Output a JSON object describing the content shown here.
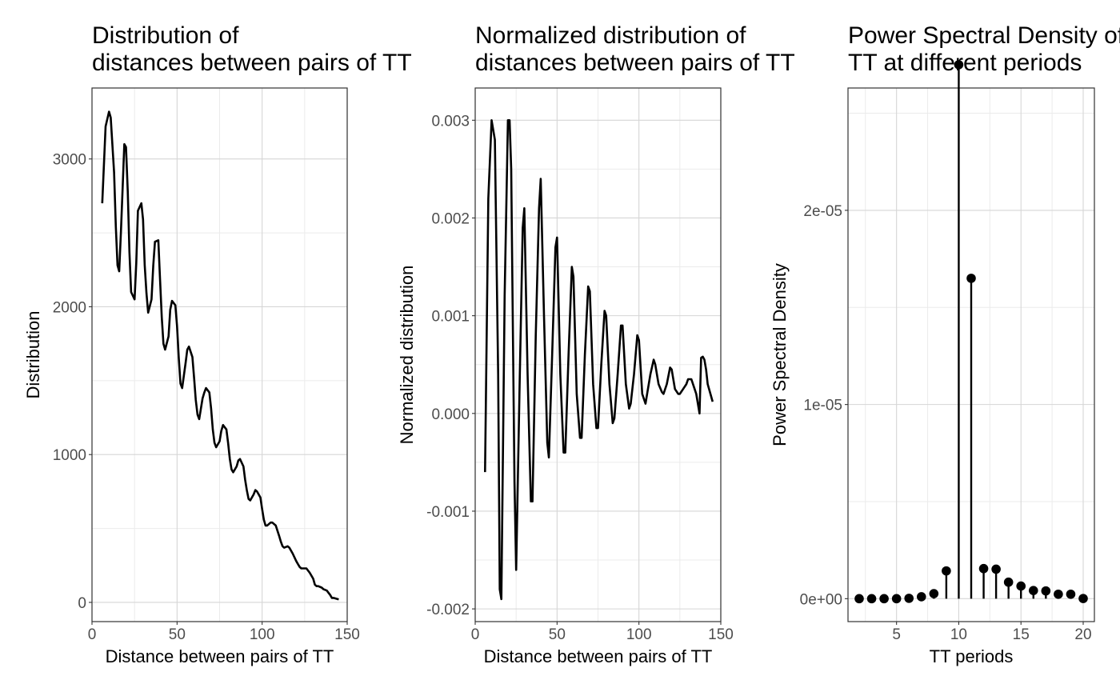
{
  "chart_data": [
    {
      "type": "line",
      "title_lines": [
        "Distribution of",
        "distances between pairs of TT"
      ],
      "xlabel": "Distance between pairs of TT",
      "ylabel": "Distribution",
      "xlim": [
        0,
        150
      ],
      "ylim": [
        -130,
        3480
      ],
      "x_ticks": [
        0,
        50,
        100,
        150
      ],
      "x_tick_labels": [
        "0",
        "50",
        "100",
        "150"
      ],
      "y_ticks": [
        0,
        1000,
        2000,
        3000
      ],
      "y_tick_labels": [
        "0",
        "1000",
        "2000",
        "3000"
      ],
      "grid": true,
      "x": [
        6,
        8,
        10,
        11,
        13,
        14,
        15,
        16,
        17,
        19,
        20,
        21,
        22,
        23,
        25,
        26,
        27,
        29,
        30,
        31,
        32,
        33,
        35,
        36,
        37,
        39,
        40,
        41,
        42,
        43,
        45,
        46,
        47,
        49,
        50,
        51,
        52,
        53,
        55,
        56,
        57,
        59,
        60,
        61,
        62,
        63,
        65,
        66,
        67,
        69,
        70,
        71,
        72,
        73,
        75,
        76,
        77,
        79,
        80,
        81,
        82,
        83,
        85,
        86,
        87,
        89,
        90,
        91,
        92,
        93,
        95,
        96,
        97,
        99,
        100,
        101,
        102,
        103,
        105,
        106,
        108,
        110,
        111,
        112,
        113,
        115,
        116,
        118,
        120,
        121,
        122,
        123,
        125,
        126,
        128,
        130,
        131,
        132,
        133,
        135,
        136,
        138,
        140,
        141,
        142,
        145
      ],
      "values": [
        2700,
        3220,
        3320,
        3280,
        2910,
        2540,
        2280,
        2240,
        2510,
        3100,
        3080,
        2780,
        2370,
        2100,
        2050,
        2290,
        2650,
        2700,
        2590,
        2280,
        2090,
        1960,
        2050,
        2280,
        2440,
        2450,
        2180,
        1930,
        1750,
        1710,
        1800,
        1980,
        2040,
        2010,
        1870,
        1650,
        1480,
        1450,
        1620,
        1710,
        1730,
        1660,
        1520,
        1370,
        1270,
        1240,
        1380,
        1420,
        1450,
        1420,
        1310,
        1170,
        1080,
        1050,
        1090,
        1160,
        1200,
        1170,
        1080,
        970,
        900,
        880,
        920,
        960,
        970,
        920,
        830,
        760,
        700,
        690,
        730,
        760,
        750,
        710,
        630,
        560,
        520,
        520,
        540,
        540,
        520,
        450,
        410,
        380,
        370,
        380,
        370,
        330,
        280,
        260,
        240,
        230,
        230,
        230,
        200,
        160,
        120,
        110,
        110,
        100,
        90,
        80,
        50,
        30,
        30,
        20
      ]
    },
    {
      "type": "line",
      "title_lines": [
        "Normalized distribution of",
        "distances between pairs of TT"
      ],
      "xlabel": "Distance between pairs of TT",
      "ylabel": "Normalized distribution",
      "xlim": [
        0,
        150
      ],
      "ylim": [
        -0.00213,
        0.00333
      ],
      "x_ticks": [
        0,
        50,
        100,
        150
      ],
      "x_tick_labels": [
        "0",
        "50",
        "100",
        "150"
      ],
      "y_ticks": [
        -0.002,
        -0.001,
        0.0,
        0.001,
        0.002,
        0.003
      ],
      "y_tick_labels": [
        "-0.002",
        "-0.001",
        "0.000",
        "0.001",
        "0.002",
        "0.003"
      ],
      "grid": true,
      "x": [
        6,
        8,
        10,
        12,
        14,
        15,
        16,
        18,
        20,
        21,
        22,
        24,
        25,
        27,
        29,
        30,
        32,
        34,
        35,
        37,
        39,
        40,
        42,
        44,
        45,
        47,
        49,
        50,
        52,
        54,
        55,
        57,
        59,
        60,
        62,
        64,
        65,
        67,
        69,
        70,
        72,
        74,
        75,
        77,
        79,
        80,
        82,
        84,
        85,
        87,
        89,
        90,
        92,
        94,
        95,
        97,
        99,
        100,
        102,
        104,
        105,
        107,
        109,
        110,
        112,
        114,
        115,
        117,
        119,
        120,
        122,
        124,
        125,
        127,
        129,
        130,
        132,
        134,
        135,
        137,
        138,
        139,
        140,
        141,
        142,
        145
      ],
      "values": [
        -0.0006,
        0.0022,
        0.003,
        0.0028,
        0.0004,
        -0.0018,
        -0.0019,
        0.0012,
        0.003,
        0.003,
        0.0025,
        -0.0007,
        -0.0016,
        0.0002,
        0.0019,
        0.0021,
        0.0004,
        -0.0009,
        -0.0009,
        0.0008,
        0.0021,
        0.0024,
        0.001,
        -0.0003,
        -0.00045,
        0.0006,
        0.0017,
        0.0018,
        0.0004,
        -0.0004,
        -0.0004,
        0.0006,
        0.0015,
        0.0014,
        0.0002,
        -0.00025,
        -0.00025,
        0.0006,
        0.0013,
        0.00125,
        0.0003,
        -0.00015,
        -0.00015,
        0.0005,
        0.00105,
        0.001,
        0.0003,
        -0.0001,
        -5e-05,
        0.0004,
        0.0009,
        0.0009,
        0.0003,
        5e-05,
        0.0001,
        0.0004,
        0.0008,
        0.00075,
        0.0002,
        0.0001,
        0.0002,
        0.0004,
        0.00055,
        0.0005,
        0.0003,
        0.00022,
        0.0002,
        0.0003,
        0.00047,
        0.00045,
        0.00025,
        0.0002,
        0.0002,
        0.00025,
        0.0003,
        0.00035,
        0.00035,
        0.00025,
        0.0002,
        0.0,
        0.00057,
        0.00058,
        0.00055,
        0.00045,
        0.0003,
        0.00012
      ]
    },
    {
      "type": "scatter",
      "style": "lollipop",
      "title_lines": [
        "Power Spectral Density of",
        "TT at different periods"
      ],
      "xlabel": "TT periods",
      "ylabel": "Power Spectral Density",
      "xlim": [
        1.1,
        20.9
      ],
      "ylim": [
        -1.18e-06,
        2.63e-05
      ],
      "x_ticks": [
        5,
        10,
        15,
        20
      ],
      "x_tick_labels": [
        "5",
        "10",
        "15",
        "20"
      ],
      "y_ticks": [
        0,
        1e-05,
        2e-05
      ],
      "y_tick_labels": [
        "0e+00",
        "1e-05",
        "2e-05"
      ],
      "grid": true,
      "x": [
        2,
        3,
        4,
        5,
        6,
        7,
        8,
        9,
        10,
        11,
        12,
        13,
        14,
        15,
        16,
        17,
        18,
        19,
        20
      ],
      "values": [
        0.0,
        0.0,
        0.0,
        0.0,
        2e-08,
        1e-07,
        2.6e-07,
        1.43e-06,
        2.75e-05,
        1.65e-05,
        1.55e-06,
        1.52e-06,
        8.5e-07,
        6.5e-07,
        4.2e-07,
        4e-07,
        2.3e-07,
        2.3e-07,
        1e-08
      ]
    }
  ]
}
